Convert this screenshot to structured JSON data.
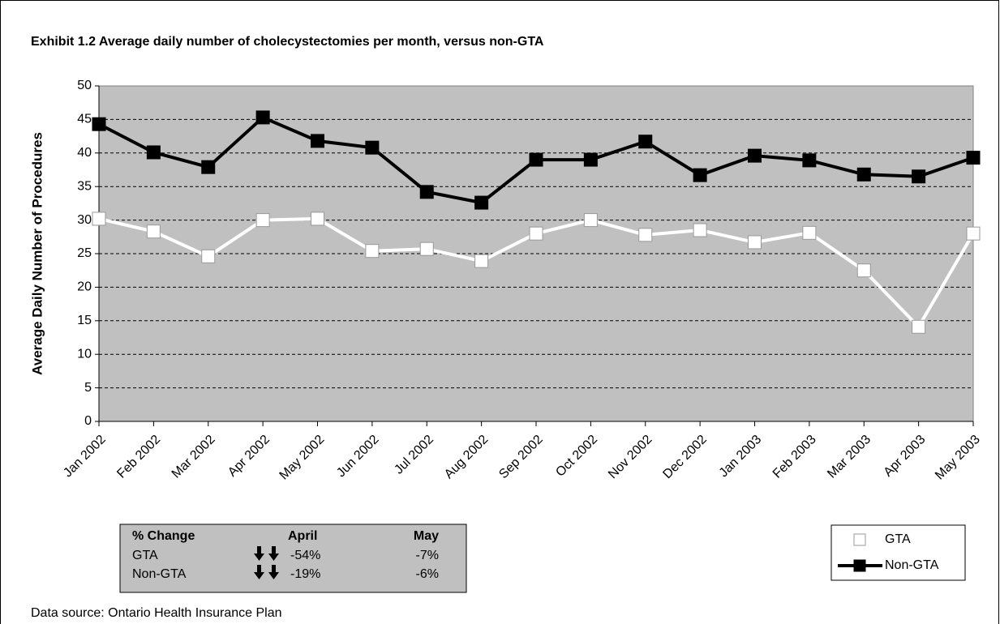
{
  "chart_data": {
    "type": "line",
    "title": "Exhibit 1.2 Average daily number of cholecystectomies per month, versus non-GTA",
    "y_label": "Average Daily Number of Procedures",
    "categories": [
      "Jan 2002",
      "Feb 2002",
      "Mar 2002",
      "Apr 2002",
      "May 2002",
      "Jun 2002",
      "Jul 2002",
      "Aug 2002",
      "Sep 2002",
      "Oct 2002",
      "Nov 2002",
      "Dec 2002",
      "Jan 2003",
      "Feb 2003",
      "Mar 2003",
      "Apr 2003",
      "May 2003"
    ],
    "series": [
      {
        "name": "GTA",
        "color": "#ffffff",
        "values": [
          30.2,
          28.3,
          24.6,
          30.0,
          30.2,
          25.4,
          25.7,
          23.9,
          28.0,
          30.0,
          27.8,
          28.5,
          26.7,
          28.1,
          22.5,
          14.1,
          28.0
        ]
      },
      {
        "name": "Non-GTA",
        "color": "#000000",
        "values": [
          44.3,
          40.1,
          37.9,
          45.3,
          41.8,
          40.8,
          34.2,
          32.6,
          39.0,
          39.0,
          41.7,
          36.7,
          39.6,
          38.9,
          36.8,
          36.5,
          39.3
        ]
      }
    ],
    "ylim": [
      0,
      50
    ],
    "yticks": [
      0,
      5,
      10,
      15,
      20,
      25,
      30,
      35,
      40,
      45,
      50
    ],
    "grid": true,
    "plot_background": "#c0c0c0",
    "legend": "bottom-right",
    "change_table": {
      "header": [
        "% Change",
        "April",
        "May"
      ],
      "rows": [
        [
          "GTA",
          "-54%",
          "-7%"
        ],
        [
          "Non-GTA",
          "-19%",
          "-6%"
        ]
      ]
    },
    "source": "Data source: Ontario Health Insurance Plan"
  }
}
